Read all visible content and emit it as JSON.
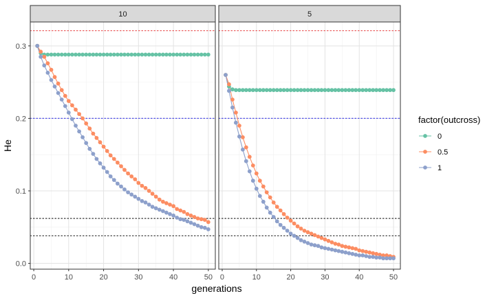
{
  "chart_data": {
    "type": "line",
    "facet_variable": "",
    "xlabel": "generations",
    "ylabel": "He",
    "xlim": [
      -1,
      52
    ],
    "ylim": [
      -0.008,
      0.333
    ],
    "x_ticks": [
      0,
      10,
      20,
      30,
      40,
      50
    ],
    "y_ticks": [
      0.0,
      0.1,
      0.2,
      0.3
    ],
    "y_tick_labels": [
      "0.0",
      "0.1",
      "0.2",
      "0.3"
    ],
    "grid": true,
    "legend": {
      "title": "factor(outcross)",
      "position": "right",
      "entries": [
        {
          "label": "0",
          "color": "#66c2a5"
        },
        {
          "label": "0.5",
          "color": "#fc8d62"
        },
        {
          "label": "1",
          "color": "#8da0cb"
        }
      ]
    },
    "reference_lines": [
      {
        "y": 0.321,
        "color": "#e84a4a",
        "style": "dotted"
      },
      {
        "y": 0.2,
        "color": "#4a4ae8",
        "style": "dotted"
      },
      {
        "y": 0.062,
        "color": "#333333",
        "style": "dotted"
      },
      {
        "y": 0.038,
        "color": "#333333",
        "style": "dotted"
      }
    ],
    "panels": [
      {
        "label": "10",
        "series": [
          {
            "name": "0",
            "color": "#66c2a5",
            "x": [
              1,
              2,
              3,
              4,
              5,
              6,
              7,
              8,
              9,
              10,
              11,
              12,
              13,
              14,
              15,
              16,
              17,
              18,
              19,
              20,
              21,
              22,
              23,
              24,
              25,
              26,
              27,
              28,
              29,
              30,
              31,
              32,
              33,
              34,
              35,
              36,
              37,
              38,
              39,
              40,
              41,
              42,
              43,
              44,
              45,
              46,
              47,
              48,
              49,
              50
            ],
            "values": [
              0.3,
              0.29,
              0.288,
              0.288,
              0.288,
              0.288,
              0.288,
              0.288,
              0.288,
              0.288,
              0.288,
              0.288,
              0.288,
              0.288,
              0.288,
              0.288,
              0.288,
              0.288,
              0.288,
              0.288,
              0.288,
              0.288,
              0.288,
              0.288,
              0.288,
              0.288,
              0.288,
              0.288,
              0.288,
              0.288,
              0.288,
              0.288,
              0.288,
              0.288,
              0.288,
              0.288,
              0.288,
              0.288,
              0.288,
              0.288,
              0.288,
              0.288,
              0.288,
              0.288,
              0.288,
              0.288,
              0.288,
              0.288,
              0.288,
              0.288
            ]
          },
          {
            "name": "0.5",
            "color": "#fc8d62",
            "x": [
              1,
              2,
              3,
              4,
              5,
              6,
              7,
              8,
              9,
              10,
              11,
              12,
              13,
              14,
              15,
              16,
              17,
              18,
              19,
              20,
              21,
              22,
              23,
              24,
              25,
              26,
              27,
              28,
              29,
              30,
              31,
              32,
              33,
              34,
              35,
              36,
              37,
              38,
              39,
              40,
              41,
              42,
              43,
              44,
              45,
              46,
              47,
              48,
              49,
              50
            ],
            "values": [
              0.3,
              0.292,
              0.285,
              0.276,
              0.267,
              0.257,
              0.248,
              0.239,
              0.231,
              0.224,
              0.218,
              0.212,
              0.206,
              0.2,
              0.193,
              0.186,
              0.179,
              0.173,
              0.167,
              0.161,
              0.155,
              0.149,
              0.144,
              0.139,
              0.134,
              0.129,
              0.124,
              0.12,
              0.116,
              0.111,
              0.107,
              0.104,
              0.1,
              0.096,
              0.092,
              0.088,
              0.085,
              0.083,
              0.081,
              0.079,
              0.075,
              0.073,
              0.071,
              0.068,
              0.066,
              0.064,
              0.062,
              0.061,
              0.06,
              0.057
            ]
          },
          {
            "name": "1",
            "color": "#8da0cb",
            "x": [
              1,
              2,
              3,
              4,
              5,
              6,
              7,
              8,
              9,
              10,
              11,
              12,
              13,
              14,
              15,
              16,
              17,
              18,
              19,
              20,
              21,
              22,
              23,
              24,
              25,
              26,
              27,
              28,
              29,
              30,
              31,
              32,
              33,
              34,
              35,
              36,
              37,
              38,
              39,
              40,
              41,
              42,
              43,
              44,
              45,
              46,
              47,
              48,
              49,
              50
            ],
            "values": [
              0.3,
              0.285,
              0.273,
              0.263,
              0.253,
              0.244,
              0.235,
              0.226,
              0.217,
              0.208,
              0.199,
              0.19,
              0.182,
              0.174,
              0.166,
              0.158,
              0.151,
              0.144,
              0.138,
              0.132,
              0.126,
              0.12,
              0.115,
              0.11,
              0.106,
              0.102,
              0.098,
              0.095,
              0.092,
              0.089,
              0.086,
              0.084,
              0.081,
              0.078,
              0.076,
              0.074,
              0.072,
              0.07,
              0.068,
              0.066,
              0.063,
              0.061,
              0.06,
              0.058,
              0.056,
              0.054,
              0.052,
              0.05,
              0.049,
              0.047
            ]
          }
        ]
      },
      {
        "label": "5",
        "series": [
          {
            "name": "0",
            "color": "#66c2a5",
            "x": [
              1,
              2,
              3,
              4,
              5,
              6,
              7,
              8,
              9,
              10,
              11,
              12,
              13,
              14,
              15,
              16,
              17,
              18,
              19,
              20,
              21,
              22,
              23,
              24,
              25,
              26,
              27,
              28,
              29,
              30,
              31,
              32,
              33,
              34,
              35,
              36,
              37,
              38,
              39,
              40,
              41,
              42,
              43,
              44,
              45,
              46,
              47,
              48,
              49,
              50
            ],
            "values": [
              0.26,
              0.244,
              0.24,
              0.239,
              0.239,
              0.239,
              0.239,
              0.239,
              0.239,
              0.239,
              0.239,
              0.239,
              0.239,
              0.239,
              0.239,
              0.239,
              0.239,
              0.239,
              0.239,
              0.239,
              0.239,
              0.239,
              0.239,
              0.239,
              0.239,
              0.239,
              0.239,
              0.239,
              0.239,
              0.239,
              0.239,
              0.239,
              0.239,
              0.239,
              0.239,
              0.239,
              0.239,
              0.239,
              0.239,
              0.239,
              0.239,
              0.239,
              0.239,
              0.239,
              0.239,
              0.239,
              0.239,
              0.239,
              0.239,
              0.239
            ]
          },
          {
            "name": "0.5",
            "color": "#fc8d62",
            "x": [
              1,
              2,
              3,
              4,
              5,
              6,
              7,
              8,
              9,
              10,
              11,
              12,
              13,
              14,
              15,
              16,
              17,
              18,
              19,
              20,
              21,
              22,
              23,
              24,
              25,
              26,
              27,
              28,
              29,
              30,
              31,
              32,
              33,
              34,
              35,
              36,
              37,
              38,
              39,
              40,
              41,
              42,
              43,
              44,
              45,
              46,
              47,
              48,
              49,
              50
            ],
            "values": [
              0.26,
              0.247,
              0.226,
              0.208,
              0.19,
              0.174,
              0.16,
              0.147,
              0.135,
              0.124,
              0.114,
              0.106,
              0.098,
              0.091,
              0.084,
              0.078,
              0.073,
              0.068,
              0.063,
              0.059,
              0.055,
              0.051,
              0.048,
              0.045,
              0.043,
              0.041,
              0.039,
              0.037,
              0.035,
              0.033,
              0.031,
              0.029,
              0.027,
              0.026,
              0.024,
              0.023,
              0.022,
              0.021,
              0.02,
              0.018,
              0.017,
              0.016,
              0.015,
              0.014,
              0.013,
              0.012,
              0.011,
              0.011,
              0.01,
              0.009
            ]
          },
          {
            "name": "1",
            "color": "#8da0cb",
            "x": [
              1,
              2,
              3,
              4,
              5,
              6,
              7,
              8,
              9,
              10,
              11,
              12,
              13,
              14,
              15,
              16,
              17,
              18,
              19,
              20,
              21,
              22,
              23,
              24,
              25,
              26,
              27,
              28,
              29,
              30,
              31,
              32,
              33,
              34,
              35,
              36,
              37,
              38,
              39,
              40,
              41,
              42,
              43,
              44,
              45,
              46,
              47,
              48,
              49,
              50
            ],
            "values": [
              0.26,
              0.238,
              0.215,
              0.194,
              0.175,
              0.157,
              0.141,
              0.127,
              0.114,
              0.103,
              0.093,
              0.085,
              0.077,
              0.07,
              0.064,
              0.058,
              0.053,
              0.049,
              0.045,
              0.041,
              0.038,
              0.035,
              0.032,
              0.03,
              0.028,
              0.026,
              0.025,
              0.024,
              0.022,
              0.021,
              0.02,
              0.019,
              0.018,
              0.017,
              0.016,
              0.015,
              0.014,
              0.013,
              0.012,
              0.011,
              0.011,
              0.01,
              0.009,
              0.009,
              0.008,
              0.008,
              0.007,
              0.007,
              0.007,
              0.007
            ]
          }
        ]
      }
    ]
  }
}
